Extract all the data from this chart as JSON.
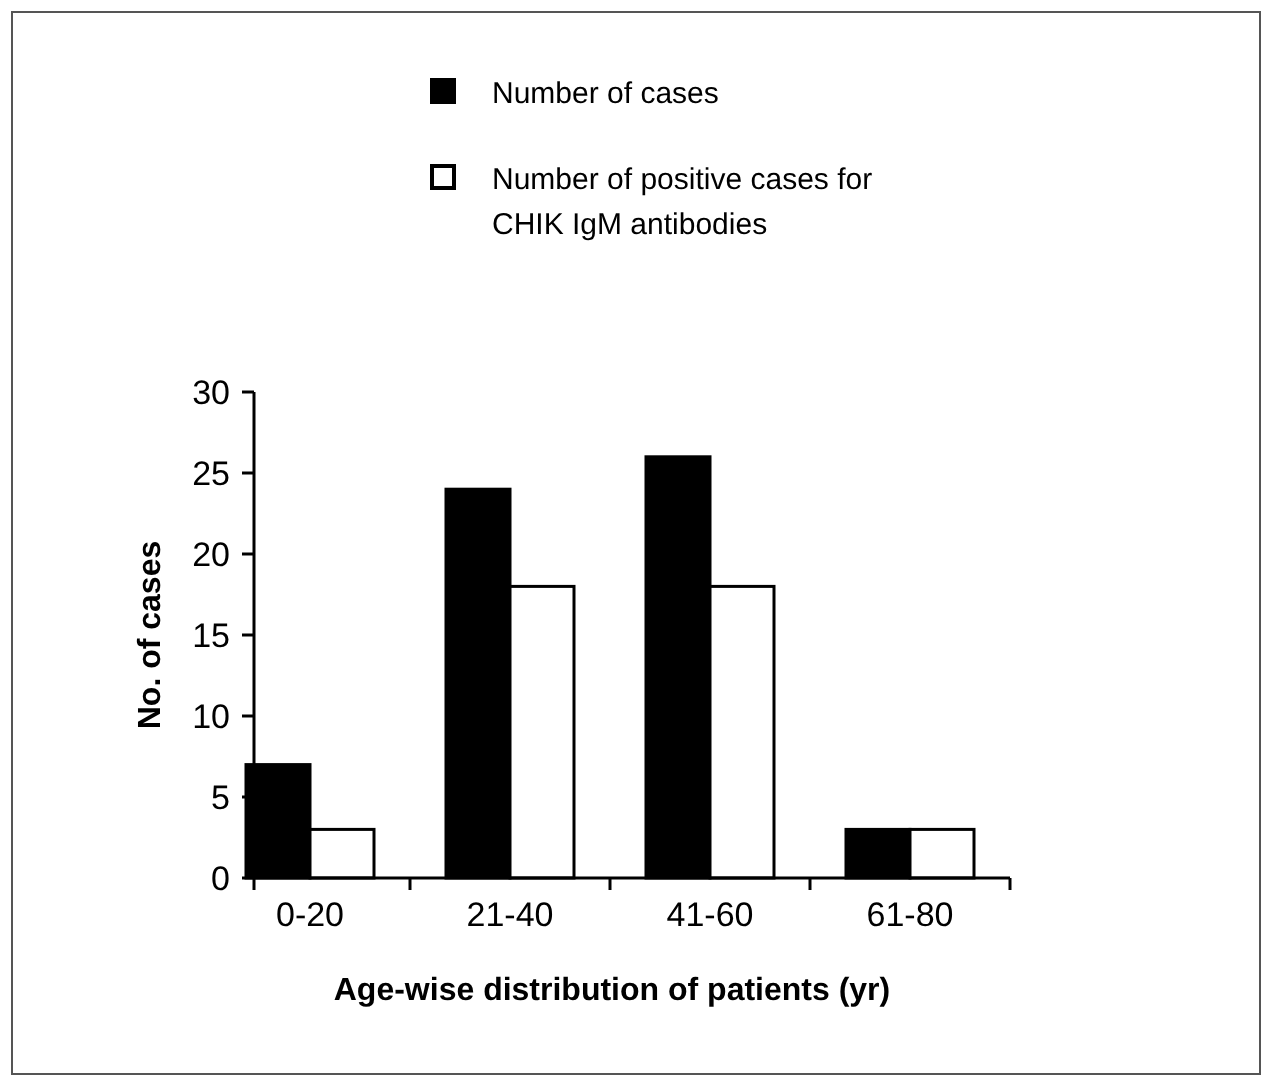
{
  "chart_data": {
    "type": "bar",
    "categories": [
      "0-20",
      "21-40",
      "41-60",
      "61-80"
    ],
    "series": [
      {
        "name": "Number of cases",
        "color": "#000000",
        "values": [
          7,
          24,
          26,
          3
        ]
      },
      {
        "name": "Number of positive cases for CHIK IgM antibodies",
        "color": "#ffffff",
        "values": [
          3,
          18,
          18,
          3
        ]
      }
    ],
    "xlabel": "Age-wise distribution of patients (yr)",
    "ylabel": "No. of cases",
    "ylim": [
      0,
      30
    ],
    "yticks": [
      0,
      5,
      10,
      15,
      20,
      25,
      30
    ],
    "grid": false,
    "legend": "top"
  }
}
